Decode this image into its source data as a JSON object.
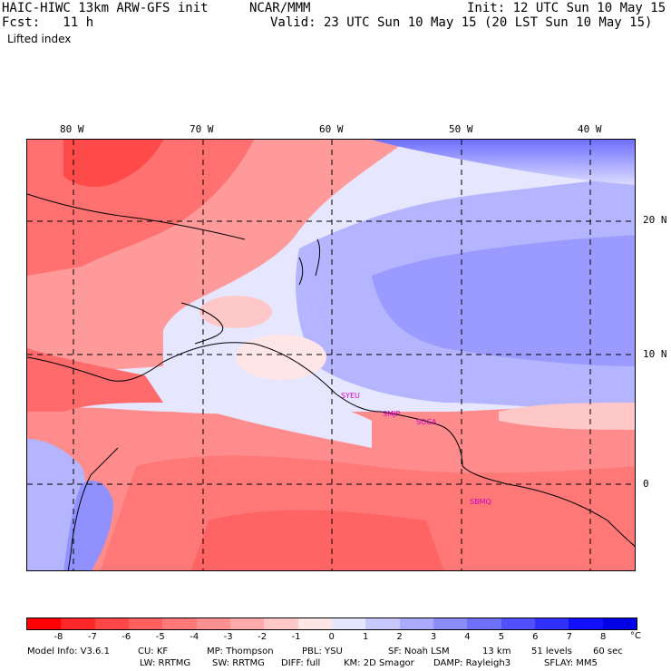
{
  "header": {
    "model": "HAIC-HIWC 13km ARW-GFS init",
    "org": "NCAR/MMM",
    "init": "Init: 12 UTC Sun 10 May 15",
    "fcst": "Fcst:   11 h",
    "valid": "Valid: 23 UTC Sun 10 May 15 (20 LST Sun 10 May 15)",
    "field": "Lifted index"
  },
  "map": {
    "lon_labels": [
      "80 W",
      "70 W",
      "60 W",
      "50 W",
      "40 W"
    ],
    "lat_labels": [
      "20 N",
      "10 N",
      "0"
    ],
    "stations": [
      "SYEU",
      "SMJP",
      "SOCA",
      "SBMQ"
    ]
  },
  "colorbar": {
    "ticks": [
      "-8",
      "-7",
      "-6",
      "-5",
      "-4",
      "-3",
      "-2",
      "-1",
      "0",
      "1",
      "2",
      "3",
      "4",
      "5",
      "6",
      "7",
      "8"
    ],
    "unit": "°C",
    "colors": [
      "#ff0000",
      "#ff2828",
      "#ff4646",
      "#ff5f5f",
      "#ff7878",
      "#ff9191",
      "#ffaaaa",
      "#ffc8c8",
      "#ffe6e6",
      "#e6e6ff",
      "#c8c8ff",
      "#aaaaff",
      "#8c8cff",
      "#7070ff",
      "#5050ff",
      "#3030ff",
      "#1010ff",
      "#0000e6"
    ]
  },
  "footer": {
    "line1": [
      "Model Info: V3.6.1",
      "CU: KF",
      "MP: Thompson",
      "PBL: YSU",
      "SF: Noah LSM",
      "13 km",
      "51 levels",
      "60 sec"
    ],
    "line2": [
      "LW: RRTMG",
      "SW: RRTMG",
      "DIFF: full",
      "KM: 2D Smagor",
      "DAMP: Rayleigh3",
      "SFLAY: MM5"
    ]
  }
}
